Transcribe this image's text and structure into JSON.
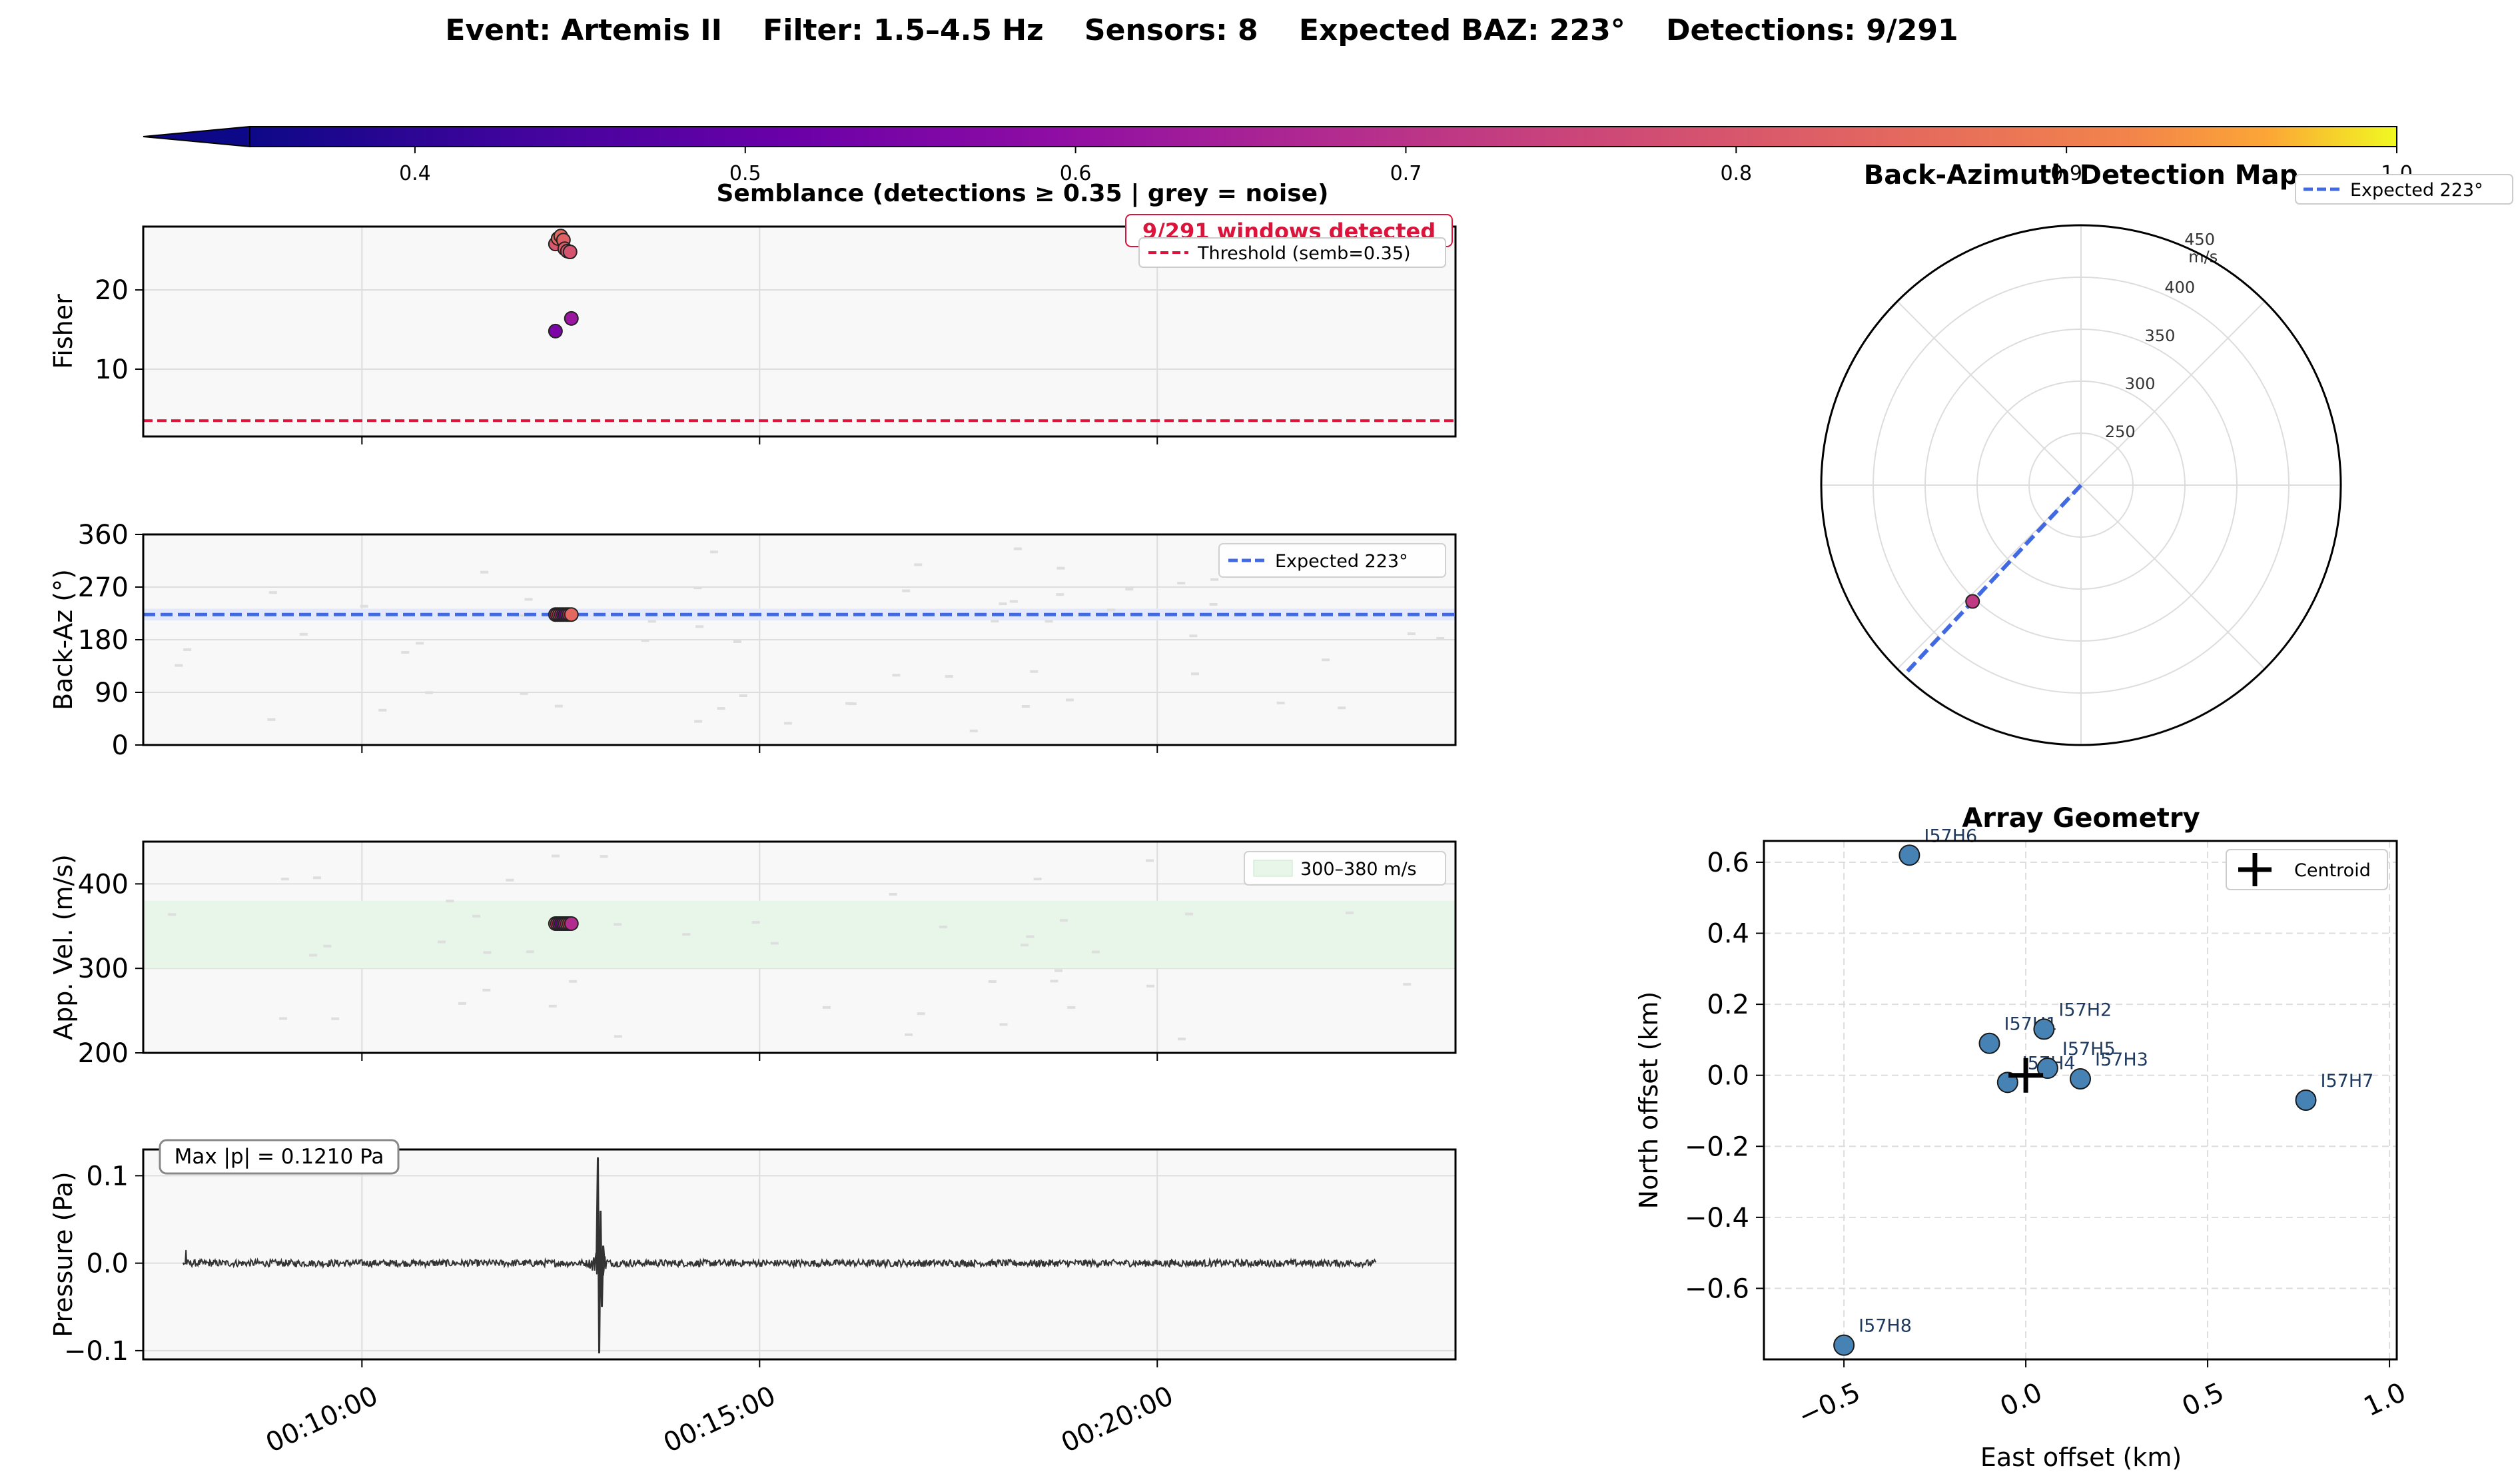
{
  "suptitle": "Event: Artemis II    Filter: 1.5–4.5 Hz    Sensors: 8    Expected BAZ: 223°    Detections: 9/291",
  "colors": {
    "expected_line": "#4169e1",
    "threshold_line": "#dc143c",
    "velocity_band": "#e8f5e9",
    "baz_band": "#e3e9fa",
    "station": "#4682b4",
    "panel_bg": "#f8f8f8",
    "trace": "#333333",
    "noise": "#dedede",
    "station_label": "#1f3a5f"
  },
  "colorbar": {
    "colormap": "plasma",
    "range": [
      0.35,
      1.0
    ],
    "extend": "min",
    "ticks": [
      "0.4",
      "0.5",
      "0.6",
      "0.7",
      "0.8",
      "0.9",
      "1.0"
    ]
  },
  "time_axis": {
    "start": "00:07:15",
    "end": "00:23:45",
    "ticks": [
      "00:10:00",
      "00:15:00",
      "00:20:00"
    ]
  },
  "chart_data": [
    {
      "type": "scatter",
      "id": "fisher",
      "title": "Semblance  (detections ≥ 0.35  |  grey = noise)",
      "ylabel": "Fisher",
      "ylim": [
        1.5,
        28
      ],
      "yticks": [
        "10",
        "20"
      ],
      "threshold": {
        "value": 3.5,
        "label": "Threshold (semb=0.35)"
      },
      "badge": "9/291 windows detected",
      "points": [
        {
          "t": "00:12:26",
          "y": 14.8,
          "semb": 0.55
        },
        {
          "t": "00:12:26",
          "y": 25.8,
          "semb": 0.8
        },
        {
          "t": "00:12:28",
          "y": 26.5,
          "semb": 0.84
        },
        {
          "t": "00:12:30",
          "y": 26.8,
          "semb": 0.85
        },
        {
          "t": "00:12:32",
          "y": 26.3,
          "semb": 0.83
        },
        {
          "t": "00:12:33",
          "y": 25.2,
          "semb": 0.81
        },
        {
          "t": "00:12:35",
          "y": 24.9,
          "semb": 0.8
        },
        {
          "t": "00:12:37",
          "y": 24.8,
          "semb": 0.79
        },
        {
          "t": "00:12:38",
          "y": 16.4,
          "semb": 0.62
        }
      ]
    },
    {
      "type": "scatter",
      "id": "backaz",
      "ylabel": "Back-Az (°)",
      "ylim": [
        0,
        360
      ],
      "yticks": [
        "0",
        "90",
        "180",
        "270",
        "360"
      ],
      "expected": {
        "value": 223,
        "label": "Expected  223°"
      },
      "band": [
        213,
        233
      ],
      "detections": {
        "t_start": "00:12:26",
        "t_end": "00:12:38",
        "y": 223,
        "count": 9
      }
    },
    {
      "type": "scatter",
      "id": "velocity",
      "ylabel": "App. Vel. (m/s)",
      "ylim": [
        200,
        450
      ],
      "yticks": [
        "200",
        "300",
        "400"
      ],
      "band": {
        "range": [
          300,
          380
        ],
        "label": "300–380 m/s"
      },
      "detections": {
        "t_start": "00:12:26",
        "t_end": "00:12:38",
        "y": 353,
        "count": 9
      }
    },
    {
      "type": "line",
      "id": "pressure",
      "ylabel": "Pressure (Pa)",
      "ylim": [
        -0.11,
        0.13
      ],
      "yticks": [
        "−0.1",
        "0.0",
        "0.1"
      ],
      "annotation": "Max |p| = 0.1210 Pa",
      "waveform": {
        "t_start": "00:07:45",
        "t_end": "00:22:45",
        "noise_amplitude": 0.004,
        "event_time": "00:12:59",
        "peak": 0.121,
        "trough": -0.103
      }
    },
    {
      "type": "scatter",
      "id": "polar",
      "title": "Back-Azimuth Detection Map",
      "rlim": [
        200,
        450
      ],
      "rticks": [
        "250",
        "300",
        "350",
        "400",
        "450"
      ],
      "r_unit": "m/s",
      "legend": "Expected 223°",
      "expected_baz": 223,
      "point": {
        "baz": 223,
        "vel": 353,
        "semb": 0.72
      }
    },
    {
      "type": "scatter",
      "id": "array",
      "title": "Array Geometry",
      "xlabel": "East offset  (km)",
      "ylabel": "North offset  (km)",
      "xlim": [
        -0.72,
        1.02
      ],
      "ylim": [
        -0.8,
        0.66
      ],
      "xticks": [
        "−0.5",
        "0.0",
        "0.5",
        "1.0"
      ],
      "yticks": [
        "−0.6",
        "−0.4",
        "−0.2",
        "0.0",
        "0.2",
        "0.4",
        "0.6"
      ],
      "legend": "Centroid",
      "stations": [
        {
          "name": "I57H1",
          "x": -0.1,
          "y": 0.09
        },
        {
          "name": "I57H2",
          "x": 0.05,
          "y": 0.13
        },
        {
          "name": "I57H3",
          "x": 0.15,
          "y": -0.01
        },
        {
          "name": "I57H4",
          "x": -0.05,
          "y": -0.02
        },
        {
          "name": "I57H5",
          "x": 0.06,
          "y": 0.02
        },
        {
          "name": "I57H6",
          "x": -0.32,
          "y": 0.62
        },
        {
          "name": "I57H7",
          "x": 0.77,
          "y": -0.07
        },
        {
          "name": "I57H8",
          "x": -0.5,
          "y": -0.76
        }
      ],
      "centroid": {
        "x": 0.0,
        "y": 0.0
      }
    }
  ]
}
